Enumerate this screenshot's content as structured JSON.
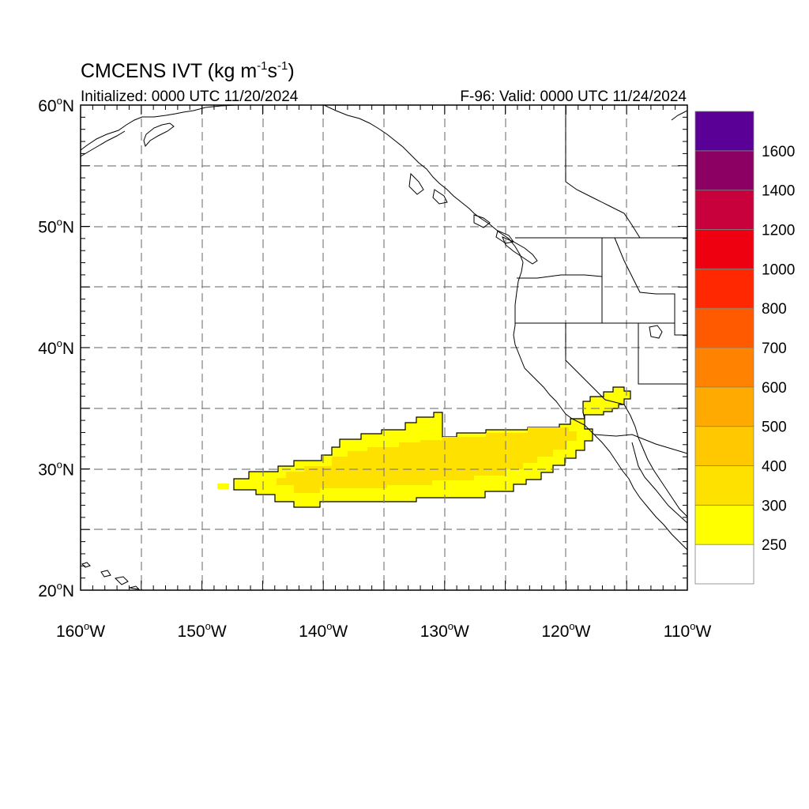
{
  "title": {
    "main": "CMCENS IVT (kg m",
    "sup1": "-1",
    "mid": "s",
    "sup2": "-1",
    "end": ")"
  },
  "init_label": "Initialized: 0000 UTC 11/20/2024",
  "valid_label": "F-96: Valid: 0000 UTC 11/24/2024",
  "map_extent": {
    "lon_range": [
      -160,
      -110
    ],
    "lat_range": [
      20,
      60
    ]
  },
  "lat_labels": [
    {
      "lat": 60,
      "num": "60",
      "hemi": "N"
    },
    {
      "lat": 50,
      "num": "50",
      "hemi": "N"
    },
    {
      "lat": 40,
      "num": "40",
      "hemi": "N"
    },
    {
      "lat": 30,
      "num": "30",
      "hemi": "N"
    },
    {
      "lat": 20,
      "num": "20",
      "hemi": "N"
    }
  ],
  "lon_labels": [
    {
      "lon": -160,
      "num": "160",
      "hemi": "W"
    },
    {
      "lon": -150,
      "num": "150",
      "hemi": "W"
    },
    {
      "lon": -140,
      "num": "140",
      "hemi": "W"
    },
    {
      "lon": -130,
      "num": "130",
      "hemi": "W"
    },
    {
      "lon": -120,
      "num": "120",
      "hemi": "W"
    },
    {
      "lon": -110,
      "num": "110",
      "hemi": "W"
    }
  ],
  "colorbar": {
    "labels": [
      "250",
      "300",
      "400",
      "500",
      "600",
      "700",
      "800",
      "1000",
      "1200",
      "1400",
      "1600"
    ],
    "colors": [
      "#ffffff",
      "#ffff00",
      "#ffe100",
      "#ffc800",
      "#ffaa00",
      "#ff8200",
      "#ff5a00",
      "#ff2800",
      "#ee0010",
      "#c8003c",
      "#8c0064",
      "#5a0096"
    ]
  },
  "colors": {
    "yellow": "#ffff00",
    "gold": "#ffe100",
    "line": "#000000",
    "grid": "#808080"
  }
}
